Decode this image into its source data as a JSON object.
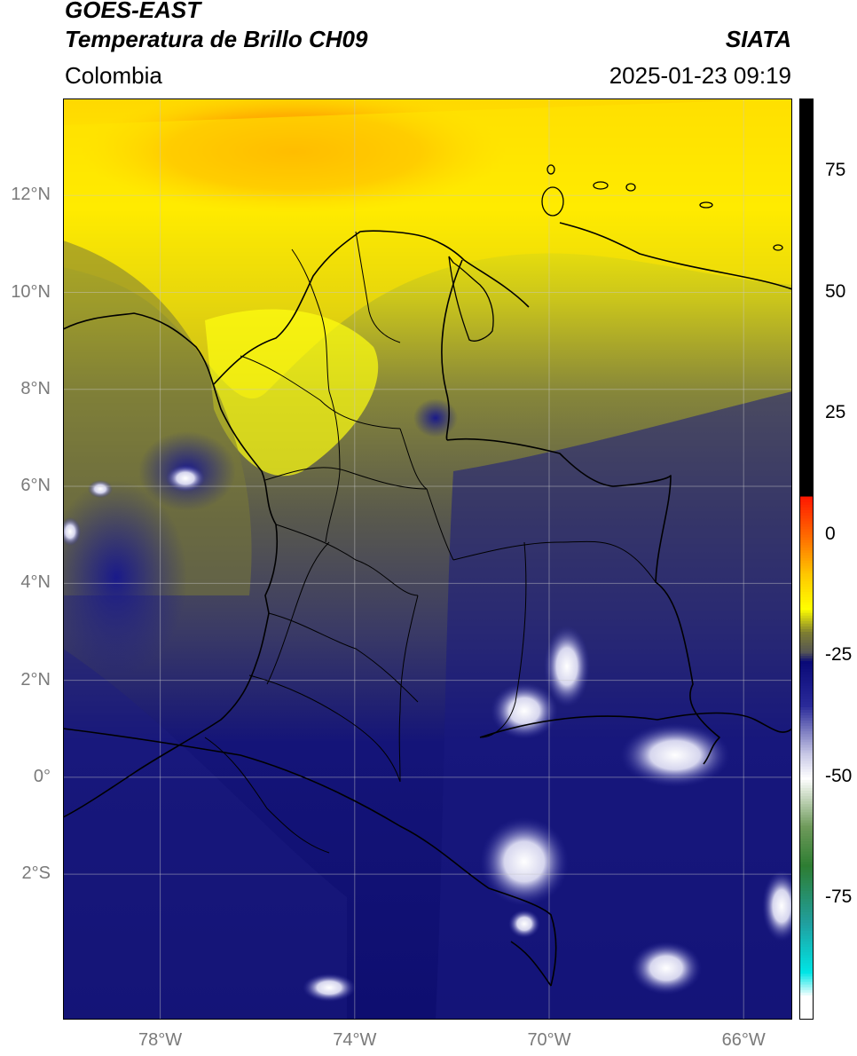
{
  "header": {
    "satellite": "GOES-EAST",
    "product": "Temperatura de Brillo CH09",
    "brand": "SIATA",
    "region": "Colombia",
    "datetime": "2025-01-23 09:19"
  },
  "map": {
    "lon_range": [
      -80,
      -65
    ],
    "lat_range": [
      -5,
      14
    ],
    "lat_ticks": [
      {
        "value": 12,
        "label": "12°N"
      },
      {
        "value": 10,
        "label": "10°N"
      },
      {
        "value": 8,
        "label": "8°N"
      },
      {
        "value": 6,
        "label": "6°N"
      },
      {
        "value": 4,
        "label": "4°N"
      },
      {
        "value": 2,
        "label": "2°N"
      },
      {
        "value": 0,
        "label": "0°"
      },
      {
        "value": -2,
        "label": "2°S"
      }
    ],
    "lon_ticks": [
      {
        "value": -78,
        "label": "78°W"
      },
      {
        "value": -74,
        "label": "74°W"
      },
      {
        "value": -70,
        "label": "70°W"
      },
      {
        "value": -66,
        "label": "66°W"
      }
    ],
    "grid": true
  },
  "colorbar": {
    "range": [
      -100,
      90
    ],
    "ticks": [
      {
        "value": 75,
        "label": "75"
      },
      {
        "value": 50,
        "label": "50"
      },
      {
        "value": 25,
        "label": "25"
      },
      {
        "value": 0,
        "label": "0"
      },
      {
        "value": -25,
        "label": "-25"
      },
      {
        "value": -50,
        "label": "-50"
      },
      {
        "value": -75,
        "label": "-75"
      }
    ],
    "stops": [
      {
        "value": 90,
        "color": "#000000"
      },
      {
        "value": 8,
        "color": "#000000"
      },
      {
        "value": 7.9,
        "color": "#ff1a00"
      },
      {
        "value": 0,
        "color": "#ff6a00"
      },
      {
        "value": -8,
        "color": "#ffc800"
      },
      {
        "value": -15,
        "color": "#ffff00"
      },
      {
        "value": -20,
        "color": "#7d7d32"
      },
      {
        "value": -24,
        "color": "#555555"
      },
      {
        "value": -26,
        "color": "#0a0a78"
      },
      {
        "value": -35,
        "color": "#2a2a99"
      },
      {
        "value": -45,
        "color": "#c8c8e6"
      },
      {
        "value": -50,
        "color": "#ffffff"
      },
      {
        "value": -60,
        "color": "#6e9a5a"
      },
      {
        "value": -68,
        "color": "#2e7d32"
      },
      {
        "value": -80,
        "color": "#20a0a0"
      },
      {
        "value": -90,
        "color": "#00e5e5"
      },
      {
        "value": -95,
        "color": "#ffffff"
      },
      {
        "value": -100,
        "color": "#ffffff"
      }
    ]
  }
}
